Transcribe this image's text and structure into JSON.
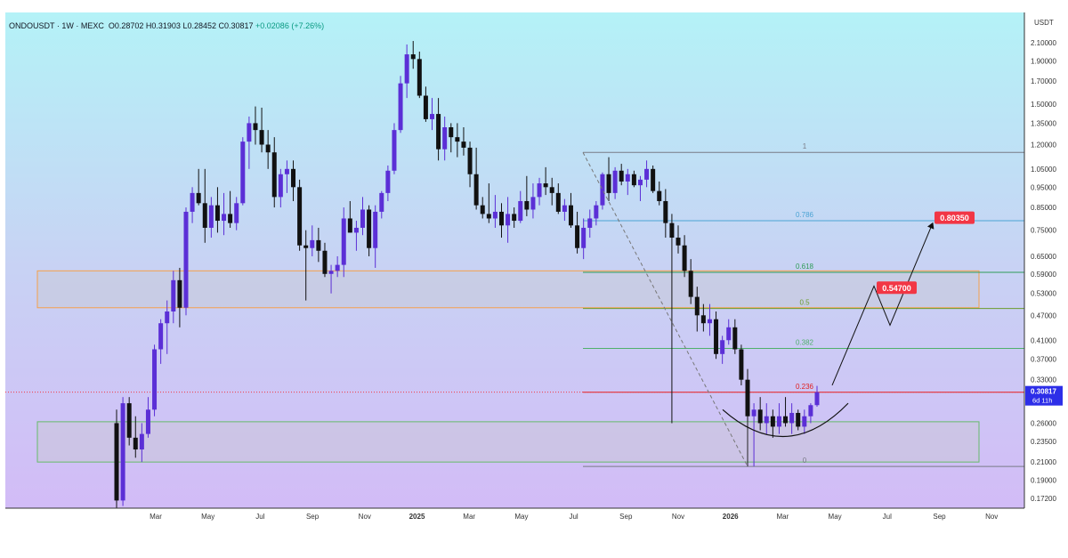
{
  "header": {
    "symbol": "ONDOUSDT",
    "timeframe": "1W",
    "exchange": "MEXC",
    "ohlc_text": "O0.28702 H0.31903 L0.28452 C0.30817",
    "change_text": "+0.02086 (+7.26%)"
  },
  "currency_label": "USDT",
  "price_label": {
    "price": "0.30817",
    "countdown": "6d 11h"
  },
  "colors": {
    "bull": "#5b2fd6",
    "bear": "#111111",
    "current_price": "#2d2ee8",
    "target": "#f23645",
    "fib_1": "#787b86",
    "fib_0786": "#4ba3d4",
    "fib_0618": "#2e9c57",
    "fib_05": "#6a9c2e",
    "fib_0382": "#4fb06b",
    "fib_0236": "#e02020",
    "orange_zone": "#f5a04a",
    "green_zone": "#66bb6a"
  },
  "chart_data": {
    "type": "candlestick",
    "scale": "log",
    "y_ticks": [
      2.1,
      1.9,
      1.7,
      1.5,
      1.35,
      1.2,
      1.05,
      0.95,
      0.85,
      0.75,
      0.65,
      0.59,
      0.53,
      0.47,
      0.41,
      0.37,
      0.33,
      0.26,
      0.235,
      0.21,
      0.19,
      0.172
    ],
    "y_tick_labels": [
      "2.10000",
      "1.90000",
      "1.70000",
      "1.50000",
      "1.35000",
      "1.20000",
      "1.05000",
      "0.95000",
      "0.85000",
      "0.75000",
      "0.65000",
      "0.59000",
      "0.53000",
      "0.47000",
      "0.41000",
      "0.37000",
      "0.33000",
      "0.26000",
      "0.23500",
      "0.21000",
      "0.19000",
      "0.17200"
    ],
    "x_ticks": [
      {
        "label": "Mar",
        "bold": false
      },
      {
        "label": "May",
        "bold": false
      },
      {
        "label": "Jul",
        "bold": false
      },
      {
        "label": "Sep",
        "bold": false
      },
      {
        "label": "Nov",
        "bold": false
      },
      {
        "label": "2025",
        "bold": true
      },
      {
        "label": "Mar",
        "bold": false
      },
      {
        "label": "May",
        "bold": false
      },
      {
        "label": "Jul",
        "bold": false
      },
      {
        "label": "Sep",
        "bold": false
      },
      {
        "label": "Nov",
        "bold": false
      },
      {
        "label": "2026",
        "bold": true
      },
      {
        "label": "Mar",
        "bold": false
      },
      {
        "label": "May",
        "bold": false
      },
      {
        "label": "Jul",
        "bold": false
      },
      {
        "label": "Sep",
        "bold": false
      },
      {
        "label": "Nov",
        "bold": false
      }
    ],
    "candles": [
      [
        0.26,
        0.28,
        0.155,
        0.17
      ],
      [
        0.17,
        0.3,
        0.165,
        0.29
      ],
      [
        0.29,
        0.3,
        0.23,
        0.24
      ],
      [
        0.24,
        0.27,
        0.215,
        0.225
      ],
      [
        0.225,
        0.26,
        0.21,
        0.245
      ],
      [
        0.245,
        0.3,
        0.24,
        0.28
      ],
      [
        0.28,
        0.4,
        0.27,
        0.39
      ],
      [
        0.39,
        0.46,
        0.36,
        0.45
      ],
      [
        0.45,
        0.51,
        0.38,
        0.48
      ],
      [
        0.48,
        0.6,
        0.45,
        0.57
      ],
      [
        0.57,
        0.61,
        0.44,
        0.49
      ],
      [
        0.49,
        0.85,
        0.47,
        0.83
      ],
      [
        0.83,
        0.95,
        0.78,
        0.92
      ],
      [
        0.92,
        1.05,
        0.86,
        0.87
      ],
      [
        0.87,
        1.05,
        0.7,
        0.76
      ],
      [
        0.76,
        0.9,
        0.72,
        0.86
      ],
      [
        0.86,
        0.95,
        0.74,
        0.79
      ],
      [
        0.79,
        0.92,
        0.73,
        0.82
      ],
      [
        0.82,
        0.93,
        0.76,
        0.78
      ],
      [
        0.78,
        0.9,
        0.75,
        0.87
      ],
      [
        0.87,
        1.25,
        0.86,
        1.22
      ],
      [
        1.22,
        1.4,
        1.05,
        1.35
      ],
      [
        1.35,
        1.48,
        1.2,
        1.3
      ],
      [
        1.3,
        1.47,
        1.15,
        1.2
      ],
      [
        1.2,
        1.3,
        1.05,
        1.15
      ],
      [
        1.15,
        1.25,
        0.85,
        0.9
      ],
      [
        0.9,
        1.05,
        0.85,
        1.02
      ],
      [
        1.02,
        1.1,
        0.92,
        1.05
      ],
      [
        1.05,
        1.1,
        0.88,
        0.95
      ],
      [
        0.95,
        0.99,
        0.67,
        0.69
      ],
      [
        0.69,
        0.75,
        0.51,
        0.68
      ],
      [
        0.68,
        0.77,
        0.65,
        0.71
      ],
      [
        0.71,
        0.76,
        0.63,
        0.67
      ],
      [
        0.67,
        0.7,
        0.58,
        0.59
      ],
      [
        0.59,
        0.62,
        0.53,
        0.6
      ],
      [
        0.6,
        0.65,
        0.58,
        0.62
      ],
      [
        0.62,
        0.85,
        0.58,
        0.8
      ],
      [
        0.8,
        0.88,
        0.74,
        0.74
      ],
      [
        0.74,
        0.79,
        0.67,
        0.76
      ],
      [
        0.76,
        0.9,
        0.73,
        0.84
      ],
      [
        0.84,
        0.86,
        0.65,
        0.68
      ],
      [
        0.68,
        0.86,
        0.61,
        0.83
      ],
      [
        0.83,
        0.93,
        0.8,
        0.92
      ],
      [
        0.92,
        1.07,
        0.88,
        1.04
      ],
      [
        1.04,
        1.35,
        1.02,
        1.3
      ],
      [
        1.3,
        1.75,
        1.28,
        1.68
      ],
      [
        1.68,
        2.08,
        1.55,
        1.97
      ],
      [
        1.97,
        2.12,
        1.82,
        1.92
      ],
      [
        1.92,
        2.0,
        1.55,
        1.57
      ],
      [
        1.57,
        1.65,
        1.36,
        1.38
      ],
      [
        1.38,
        1.55,
        1.3,
        1.42
      ],
      [
        1.42,
        1.55,
        1.1,
        1.17
      ],
      [
        1.17,
        1.4,
        1.1,
        1.32
      ],
      [
        1.32,
        1.35,
        1.15,
        1.25
      ],
      [
        1.25,
        1.35,
        1.12,
        1.22
      ],
      [
        1.22,
        1.32,
        1.13,
        1.18
      ],
      [
        1.18,
        1.22,
        0.95,
        1.02
      ],
      [
        1.02,
        1.18,
        0.84,
        0.86
      ],
      [
        0.86,
        0.9,
        0.8,
        0.82
      ],
      [
        0.82,
        0.97,
        0.78,
        0.8
      ],
      [
        0.8,
        0.91,
        0.76,
        0.83
      ],
      [
        0.83,
        0.87,
        0.72,
        0.77
      ],
      [
        0.77,
        0.9,
        0.7,
        0.82
      ],
      [
        0.82,
        0.85,
        0.76,
        0.79
      ],
      [
        0.79,
        0.93,
        0.78,
        0.88
      ],
      [
        0.88,
        1.01,
        0.81,
        0.84
      ],
      [
        0.84,
        0.97,
        0.8,
        0.9
      ],
      [
        0.9,
        1.0,
        0.86,
        0.97
      ],
      [
        0.97,
        1.06,
        0.91,
        0.95
      ],
      [
        0.95,
        1.0,
        0.86,
        0.92
      ],
      [
        0.92,
        0.97,
        0.82,
        0.83
      ],
      [
        0.83,
        0.89,
        0.79,
        0.86
      ],
      [
        0.86,
        0.92,
        0.76,
        0.77
      ],
      [
        0.77,
        0.83,
        0.66,
        0.68
      ],
      [
        0.68,
        0.8,
        0.64,
        0.76
      ],
      [
        0.76,
        0.84,
        0.72,
        0.8
      ],
      [
        0.8,
        0.88,
        0.77,
        0.86
      ],
      [
        0.86,
        1.03,
        0.84,
        1.02
      ],
      [
        1.02,
        1.12,
        0.88,
        0.92
      ],
      [
        0.92,
        1.06,
        0.89,
        1.04
      ],
      [
        1.04,
        1.08,
        0.96,
        0.98
      ],
      [
        0.98,
        1.05,
        0.91,
        1.02
      ],
      [
        1.02,
        1.04,
        0.95,
        0.96
      ],
      [
        0.96,
        1.01,
        0.88,
        0.99
      ],
      [
        0.99,
        1.1,
        0.95,
        1.05
      ],
      [
        1.05,
        1.07,
        0.92,
        0.93
      ],
      [
        0.93,
        0.98,
        0.86,
        0.88
      ],
      [
        0.88,
        0.94,
        0.72,
        0.78
      ],
      [
        0.78,
        0.82,
        0.26,
        0.72
      ],
      [
        0.72,
        0.77,
        0.66,
        0.69
      ],
      [
        0.69,
        0.73,
        0.58,
        0.6
      ],
      [
        0.6,
        0.64,
        0.5,
        0.52
      ],
      [
        0.52,
        0.55,
        0.43,
        0.47
      ],
      [
        0.47,
        0.5,
        0.43,
        0.45
      ],
      [
        0.45,
        0.5,
        0.42,
        0.46
      ],
      [
        0.46,
        0.48,
        0.37,
        0.38
      ],
      [
        0.38,
        0.42,
        0.36,
        0.41
      ],
      [
        0.41,
        0.46,
        0.4,
        0.44
      ],
      [
        0.44,
        0.46,
        0.38,
        0.39
      ],
      [
        0.39,
        0.4,
        0.32,
        0.33
      ],
      [
        0.33,
        0.35,
        0.26,
        0.27
      ],
      [
        0.27,
        0.29,
        0.205,
        0.28
      ],
      [
        0.28,
        0.3,
        0.25,
        0.26
      ],
      [
        0.26,
        0.29,
        0.245,
        0.27
      ],
      [
        0.27,
        0.28,
        0.24,
        0.255
      ],
      [
        0.255,
        0.29,
        0.245,
        0.27
      ],
      [
        0.27,
        0.3,
        0.255,
        0.26
      ],
      [
        0.26,
        0.29,
        0.245,
        0.275
      ],
      [
        0.275,
        0.28,
        0.25,
        0.255
      ],
      [
        0.255,
        0.28,
        0.245,
        0.27
      ],
      [
        0.27,
        0.29,
        0.26,
        0.287
      ],
      [
        0.287,
        0.319,
        0.2845,
        0.30817
      ]
    ],
    "fib_levels": [
      {
        "label": "1",
        "price": 1.15
      },
      {
        "label": "0.786",
        "price": 0.79
      },
      {
        "label": "0.618",
        "price": 0.595
      },
      {
        "label": "0.5",
        "price": 0.488
      },
      {
        "label": "0.382",
        "price": 0.392
      },
      {
        "label": "0.236",
        "price": 0.308
      },
      {
        "label": "0",
        "price": 0.205
      }
    ],
    "zones": [
      {
        "from": 0.49,
        "to": 0.6,
        "color": "orange"
      },
      {
        "from": 0.21,
        "to": 0.262,
        "color": "green"
      }
    ],
    "targets": [
      {
        "label": "0.54700",
        "price": 0.547
      },
      {
        "label": "0.80350",
        "price": 0.8035
      }
    ],
    "current_price": 0.30817
  }
}
